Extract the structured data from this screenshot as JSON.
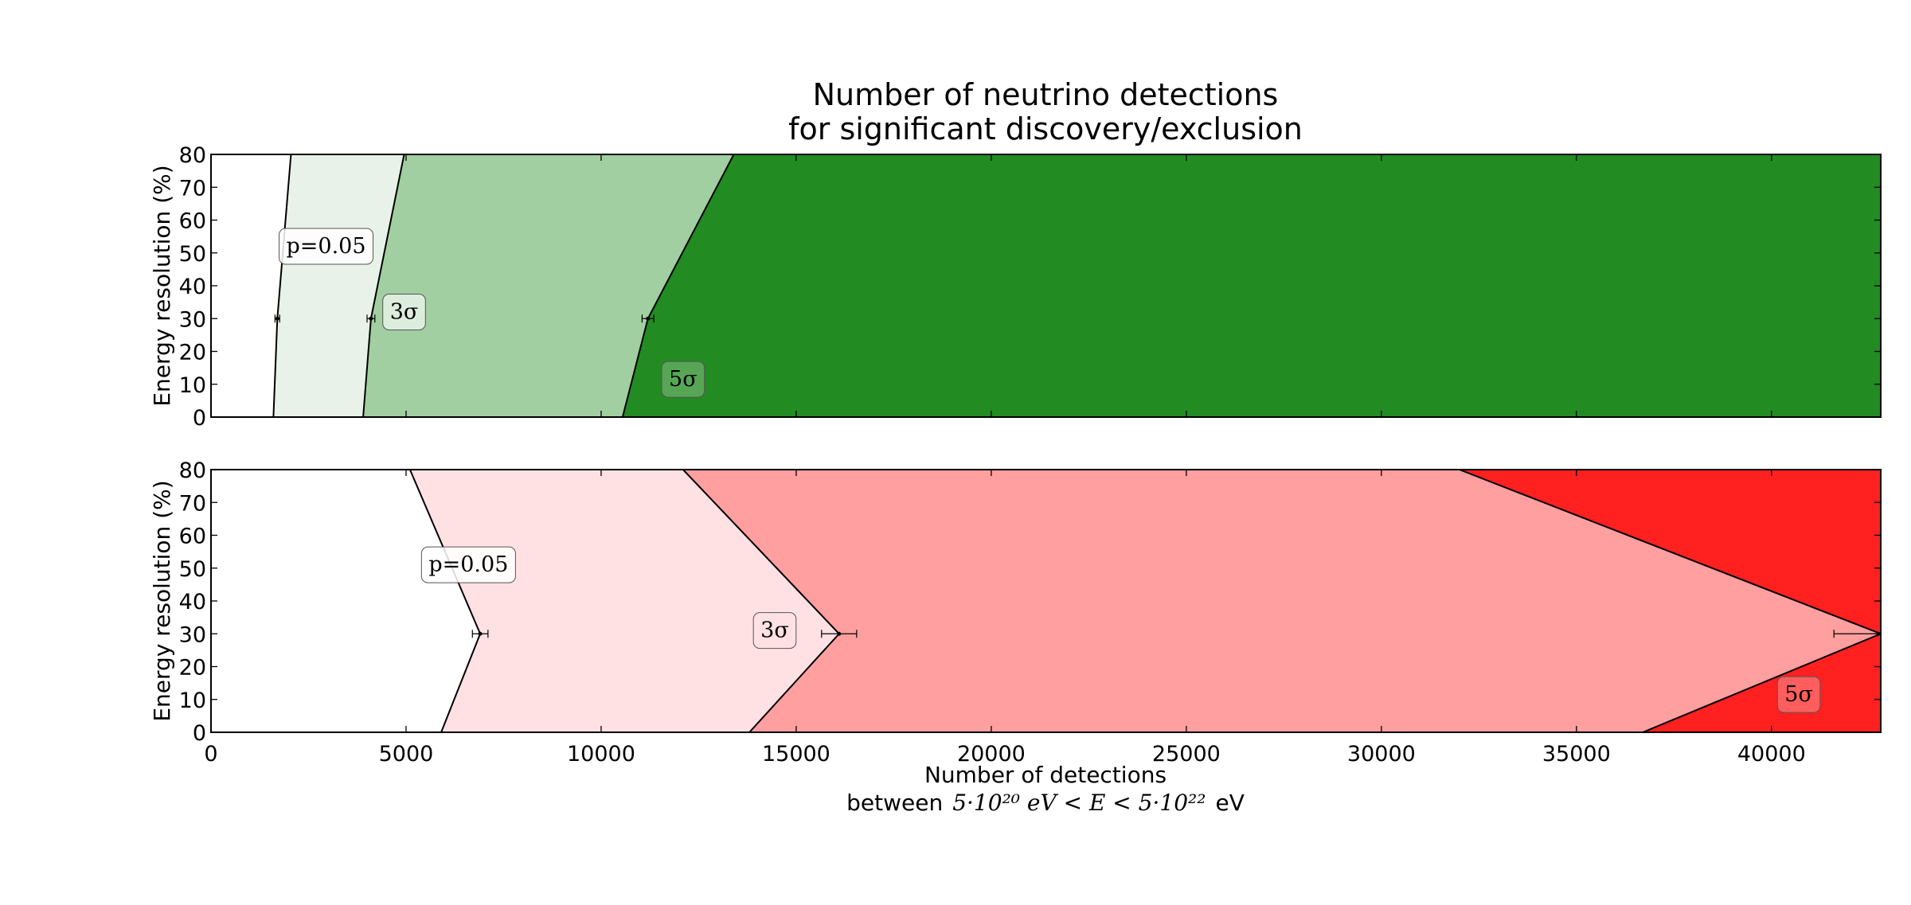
{
  "figure": {
    "title_line1": "Number of neutrino detections",
    "title_line2": "for significant discovery/exclusion",
    "xlabel_line1": "Number of detections",
    "xlabel_line2_prefix": "between",
    "xlabel_line2_math": "5·10²⁰ eV < E < 5·10²²",
    "xlabel_line2_suffix": "eV"
  },
  "chart_data": [
    {
      "type": "area",
      "panel": "top",
      "title": "",
      "xlabel": "",
      "ylabel": "Energy resolution (%)",
      "xlim": [
        0,
        42800
      ],
      "ylim": [
        0,
        80
      ],
      "xticks": [
        0,
        5000,
        10000,
        15000,
        20000,
        25000,
        30000,
        35000,
        40000
      ],
      "yticks": [
        0,
        10,
        20,
        30,
        40,
        50,
        60,
        70,
        80
      ],
      "show_xtick_labels": false,
      "grid": false,
      "regions": [
        {
          "label": "p=0.05",
          "color": "#e8f2e8",
          "from": "p=0.05",
          "to": "3σ"
        },
        {
          "label": "3σ",
          "color": "#a1cfa1",
          "from": "3σ",
          "to": "5σ"
        },
        {
          "label": "5σ",
          "color": "#228b22",
          "from": "5σ",
          "to": "xmax"
        }
      ],
      "boundaries": [
        {
          "name": "p=0.05",
          "points": [
            [
              1600,
              0
            ],
            [
              1700,
              30
            ],
            [
              2050,
              80
            ]
          ],
          "err30": 60
        },
        {
          "name": "3σ",
          "points": [
            [
              3900,
              0
            ],
            [
              4100,
              30
            ],
            [
              4950,
              80
            ]
          ],
          "err30": 100
        },
        {
          "name": "5σ",
          "points": [
            [
              10550,
              0
            ],
            [
              11200,
              30
            ],
            [
              13400,
              80
            ]
          ],
          "err30": 150
        }
      ],
      "labels": [
        {
          "text": "p=0.05",
          "x": 2950,
          "y": 52,
          "box_color": "#ffffff"
        },
        {
          "text": "3σ",
          "x": 4950,
          "y": 32,
          "box_color": "#e8f2e8"
        },
        {
          "text": "5σ",
          "x": 12100,
          "y": 11.5,
          "box_color": "#5faa5f"
        }
      ]
    },
    {
      "type": "area",
      "panel": "bottom",
      "title": "",
      "xlabel": "Number of detections",
      "ylabel": "Energy resolution (%)",
      "xlim": [
        0,
        42800
      ],
      "ylim": [
        0,
        80
      ],
      "xticks": [
        0,
        5000,
        10000,
        15000,
        20000,
        25000,
        30000,
        35000,
        40000
      ],
      "yticks": [
        0,
        10,
        20,
        30,
        40,
        50,
        60,
        70,
        80
      ],
      "show_xtick_labels": true,
      "grid": false,
      "regions": [
        {
          "label": "p=0.05",
          "color": "#ffe1e4",
          "from": "p=0.05",
          "to": "3σ"
        },
        {
          "label": "3σ",
          "color": "#ff9fa0",
          "from": "3σ",
          "to": "5σ"
        },
        {
          "label": "5σ",
          "color": "#ff2020",
          "from": "5σ",
          "to": "xmax"
        }
      ],
      "boundaries": [
        {
          "name": "p=0.05",
          "points": [
            [
              5900,
              0
            ],
            [
              6900,
              30
            ],
            [
              5100,
              80
            ]
          ],
          "err30": 200
        },
        {
          "name": "3σ",
          "points": [
            [
              13800,
              0
            ],
            [
              16100,
              30
            ],
            [
              12100,
              80
            ]
          ],
          "err30": 450
        },
        {
          "name": "5σ",
          "points": [
            [
              36700,
              0
            ],
            [
              42800,
              30
            ],
            [
              32000,
              80
            ]
          ],
          "err30": 1200
        }
      ],
      "labels": [
        {
          "text": "p=0.05",
          "x": 6600,
          "y": 51,
          "box_color": "#ffffff"
        },
        {
          "text": "3σ",
          "x": 14450,
          "y": 31,
          "box_color": "#ffe1e4"
        },
        {
          "text": "5σ",
          "x": 40700,
          "y": 11.5,
          "box_color": "#ff6a6a"
        }
      ]
    }
  ]
}
